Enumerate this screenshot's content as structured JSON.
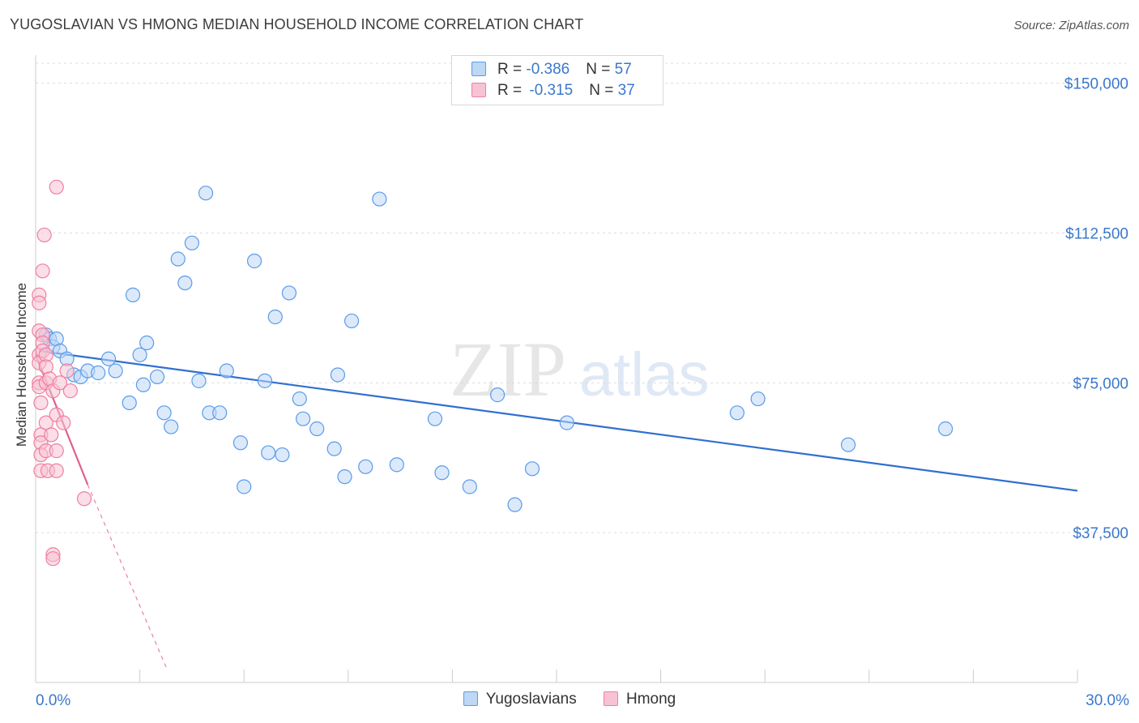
{
  "chart_data": {
    "type": "scatter",
    "title": "YUGOSLAVIAN VS HMONG MEDIAN HOUSEHOLD INCOME CORRELATION CHART",
    "source": "Source: ZipAtlas.com",
    "ylabel": "Median Household Income",
    "xlim": [
      0,
      30
    ],
    "ylim": [
      0,
      155000
    ],
    "x_tick_labels": [
      "0.0%",
      "30.0%"
    ],
    "y_ticks": [
      {
        "value": 150000,
        "label": "$150,000"
      },
      {
        "value": 112500,
        "label": "$112,500"
      },
      {
        "value": 75000,
        "label": "$75,000"
      },
      {
        "value": 37500,
        "label": "$37,500"
      }
    ],
    "grid": true,
    "watermark": {
      "part1": "ZIP",
      "part2": "atlas"
    },
    "legend": {
      "position": "top-center",
      "rows": [
        {
          "r_label": "R = ",
          "r_value": "-0.386",
          "n_label": "N = ",
          "n_value": "57"
        },
        {
          "r_label": "R = ",
          "r_value": "-0.315",
          "n_label": "N = ",
          "n_value": "37"
        }
      ]
    },
    "series": [
      {
        "name": "Yugoslavians",
        "color": "#5b9bea",
        "fill": "#bdd7f5",
        "trend": {
          "x0": 0.1,
          "y0": 83000,
          "x1": 30,
          "y1": 48000,
          "color": "#2f6fd0"
        },
        "points": [
          [
            0.3,
            87000
          ],
          [
            0.4,
            86000
          ],
          [
            0.5,
            84000
          ],
          [
            0.6,
            86000
          ],
          [
            0.7,
            83000
          ],
          [
            0.9,
            81000
          ],
          [
            1.1,
            77000
          ],
          [
            1.3,
            76500
          ],
          [
            1.5,
            78000
          ],
          [
            1.8,
            77500
          ],
          [
            2.1,
            81000
          ],
          [
            2.3,
            78000
          ],
          [
            2.7,
            70000
          ],
          [
            2.8,
            97000
          ],
          [
            3.1,
            74500
          ],
          [
            3.2,
            85000
          ],
          [
            3.5,
            76500
          ],
          [
            3.7,
            67500
          ],
          [
            3.9,
            64000
          ],
          [
            4.1,
            106000
          ],
          [
            4.3,
            100000
          ],
          [
            4.5,
            110000
          ],
          [
            4.7,
            75500
          ],
          [
            4.9,
            122500
          ],
          [
            5.0,
            67500
          ],
          [
            5.3,
            67500
          ],
          [
            5.5,
            78000
          ],
          [
            5.9,
            60000
          ],
          [
            6.0,
            49000
          ],
          [
            6.3,
            105500
          ],
          [
            6.6,
            75500
          ],
          [
            6.7,
            57500
          ],
          [
            6.9,
            91500
          ],
          [
            7.1,
            57000
          ],
          [
            7.3,
            97500
          ],
          [
            7.6,
            71000
          ],
          [
            7.7,
            66000
          ],
          [
            8.1,
            63500
          ],
          [
            8.6,
            58500
          ],
          [
            8.7,
            77000
          ],
          [
            8.9,
            51500
          ],
          [
            9.1,
            90500
          ],
          [
            9.5,
            54000
          ],
          [
            9.9,
            121000
          ],
          [
            10.4,
            54500
          ],
          [
            11.5,
            66000
          ],
          [
            11.7,
            52500
          ],
          [
            12.5,
            49000
          ],
          [
            13.3,
            72000
          ],
          [
            13.8,
            44500
          ],
          [
            14.3,
            53500
          ],
          [
            15.3,
            65000
          ],
          [
            20.2,
            67500
          ],
          [
            20.8,
            71000
          ],
          [
            23.4,
            59500
          ],
          [
            26.2,
            63500
          ],
          [
            3.0,
            82000
          ]
        ]
      },
      {
        "name": "Hmong",
        "color": "#ef7fa2",
        "fill": "#f7c3d4",
        "trend": {
          "x0": 0.0,
          "y0": 82000,
          "x1": 1.5,
          "y1": 49500,
          "color": "#e0608a"
        },
        "trend_ext": {
          "x0": 1.5,
          "y0": 49500,
          "x1": 3.8,
          "y1": 3000
        },
        "points": [
          [
            0.1,
            97000
          ],
          [
            0.1,
            95000
          ],
          [
            0.1,
            88000
          ],
          [
            0.1,
            82000
          ],
          [
            0.1,
            80000
          ],
          [
            0.1,
            75000
          ],
          [
            0.1,
            74000
          ],
          [
            0.15,
            70000
          ],
          [
            0.15,
            62000
          ],
          [
            0.15,
            60000
          ],
          [
            0.15,
            57000
          ],
          [
            0.15,
            53000
          ],
          [
            0.2,
            103000
          ],
          [
            0.2,
            87000
          ],
          [
            0.2,
            85000
          ],
          [
            0.2,
            83000
          ],
          [
            0.25,
            112000
          ],
          [
            0.3,
            82000
          ],
          [
            0.3,
            79000
          ],
          [
            0.3,
            75000
          ],
          [
            0.3,
            65000
          ],
          [
            0.3,
            58000
          ],
          [
            0.35,
            53000
          ],
          [
            0.4,
            76000
          ],
          [
            0.45,
            62000
          ],
          [
            0.5,
            73000
          ],
          [
            0.5,
            32000
          ],
          [
            0.5,
            31000
          ],
          [
            0.6,
            124000
          ],
          [
            0.6,
            67000
          ],
          [
            0.6,
            58000
          ],
          [
            0.6,
            53000
          ],
          [
            0.7,
            75000
          ],
          [
            0.8,
            65000
          ],
          [
            0.9,
            78000
          ],
          [
            1.0,
            73000
          ],
          [
            1.4,
            46000
          ]
        ]
      }
    ]
  }
}
